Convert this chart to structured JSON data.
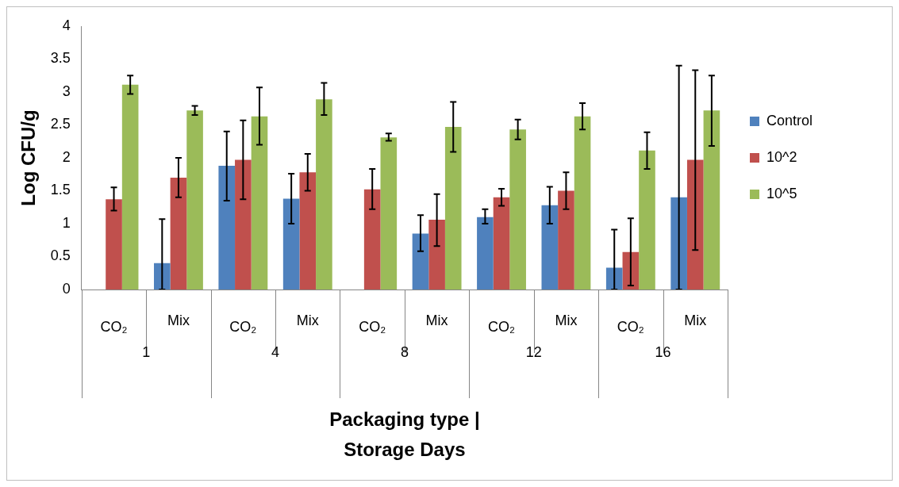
{
  "chart_data": {
    "type": "bar",
    "xlabel": "Packaging type |\nStorage Days",
    "ylabel": "Log CFU/g",
    "categories": [
      "CO₂",
      "Mix",
      "CO₂",
      "Mix",
      "CO₂",
      "Mix",
      "CO₂",
      "Mix",
      "CO₂",
      "Mix"
    ],
    "annotations": [
      "1",
      "4",
      "8",
      "12",
      "16"
    ],
    "series": [
      {
        "name": "Control",
        "color": "#4f81bd",
        "values": [
          null,
          0.4,
          1.88,
          1.38,
          null,
          0.85,
          1.1,
          1.28,
          0.33,
          1.4
        ],
        "errors": [
          null,
          [
            0,
            1.07
          ],
          [
            1.35,
            2.4
          ],
          [
            1.0,
            1.76
          ],
          null,
          [
            0.58,
            1.13
          ],
          [
            1.0,
            1.22
          ],
          [
            1.0,
            1.56
          ],
          [
            0,
            0.91
          ],
          [
            0,
            3.4
          ]
        ]
      },
      {
        "name": "10^2",
        "color": "#c0504d",
        "values": [
          1.37,
          1.7,
          1.97,
          1.78,
          1.52,
          1.06,
          1.4,
          1.5,
          0.57,
          1.97
        ],
        "errors": [
          [
            1.2,
            1.55
          ],
          [
            1.4,
            2.0
          ],
          [
            1.37,
            2.57
          ],
          [
            1.5,
            2.06
          ],
          [
            1.22,
            1.83
          ],
          [
            0.66,
            1.45
          ],
          [
            1.27,
            1.53
          ],
          [
            1.22,
            1.78
          ],
          [
            0.06,
            1.08
          ],
          [
            0.6,
            3.33
          ]
        ]
      },
      {
        "name": "10^5",
        "color": "#9bbb59",
        "values": [
          3.11,
          2.72,
          2.63,
          2.89,
          2.31,
          2.47,
          2.43,
          2.63,
          2.11,
          2.72
        ],
        "errors": [
          [
            2.97,
            3.25
          ],
          [
            2.65,
            2.79
          ],
          [
            2.2,
            3.07
          ],
          [
            2.65,
            3.14
          ],
          [
            2.26,
            2.37
          ],
          [
            2.09,
            2.85
          ],
          [
            2.28,
            2.58
          ],
          [
            2.43,
            2.83
          ],
          [
            1.83,
            2.39
          ],
          [
            2.18,
            3.25
          ]
        ]
      }
    ],
    "ylim": [
      0,
      4
    ],
    "yticks": [
      0,
      0.5,
      1,
      1.5,
      2,
      2.5,
      3,
      3.5,
      4
    ],
    "grid": false,
    "legend": "right"
  }
}
